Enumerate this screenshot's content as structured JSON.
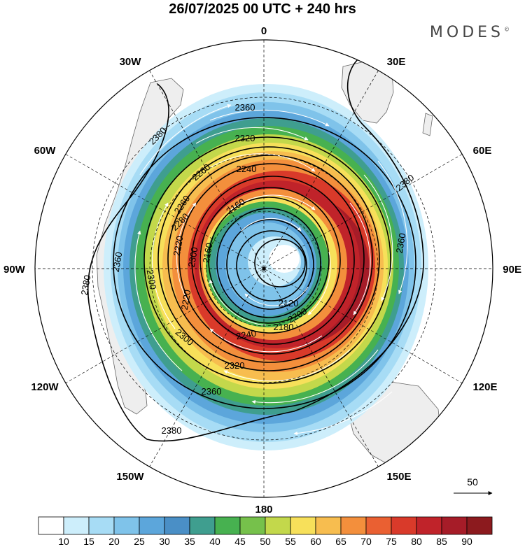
{
  "title": "26/07/2025  00 UTC  + 240 hrs",
  "brand": "MODES",
  "brand_mark": "©",
  "longitude_labels": {
    "top": "0",
    "bottom": "180",
    "left": "90W",
    "right": "90E",
    "w30": "30W",
    "e30": "30E",
    "w60": "60W",
    "e60": "60E",
    "w120": "120W",
    "e120": "120E",
    "w150": "150W",
    "e150": "150E"
  },
  "contour_labels": [
    "2120",
    "2160",
    "2160",
    "2180",
    "2200",
    "2220",
    "2220",
    "2240",
    "2240",
    "2260",
    "2260",
    "2280",
    "2300",
    "2300",
    "2300",
    "2320",
    "2320",
    "2360",
    "2360",
    "2360",
    "2360",
    "2380",
    "2380",
    "2380",
    "2380"
  ],
  "reference_vector": {
    "label": "50"
  },
  "colorbar": {
    "colors": [
      "#ffffff",
      "#cdeefb",
      "#a7dcf5",
      "#7fc3ea",
      "#5ca6db",
      "#4a8fc6",
      "#3f9e8f",
      "#47b150",
      "#76c14b",
      "#c3d84b",
      "#f7e05a",
      "#f7bd4f",
      "#f38f3c",
      "#ea6032",
      "#d93a2a",
      "#c0232a",
      "#a61c28",
      "#8c1a1e"
    ],
    "labels": [
      "10",
      "15",
      "20",
      "25",
      "30",
      "35",
      "40",
      "45",
      "50",
      "55",
      "60",
      "65",
      "70",
      "75",
      "80",
      "85",
      "90"
    ]
  }
}
